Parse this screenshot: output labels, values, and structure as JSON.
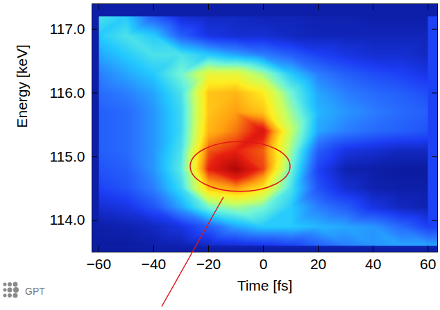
{
  "chart_data": {
    "type": "heatmap",
    "xlabel": "Time [fs]",
    "ylabel": "Energy [keV]",
    "xlim": [
      -62.5,
      63.5
    ],
    "ylim": [
      113.5,
      117.4
    ],
    "xticks": [
      -60,
      -40,
      -20,
      0,
      20,
      40,
      60
    ],
    "yticks": [
      114,
      115,
      116,
      117
    ],
    "x": [
      -60,
      -50,
      -40,
      -30,
      -20,
      -10,
      0,
      10,
      20,
      30,
      40,
      50,
      60
    ],
    "y": [
      113.6,
      113.9,
      114.2,
      114.5,
      114.8,
      115.1,
      115.4,
      115.7,
      116.0,
      116.3,
      116.6,
      116.9,
      117.2
    ],
    "cells": [
      [
        0.04,
        0.04,
        0.05,
        0.06,
        0.08,
        0.1,
        0.12,
        0.15,
        0.2,
        0.25,
        0.28,
        0.3,
        0.3
      ],
      [
        0.05,
        0.06,
        0.08,
        0.12,
        0.2,
        0.3,
        0.35,
        0.35,
        0.32,
        0.3,
        0.28,
        0.22,
        0.15
      ],
      [
        0.1,
        0.12,
        0.18,
        0.3,
        0.45,
        0.5,
        0.45,
        0.35,
        0.25,
        0.2,
        0.12,
        0.08,
        0.06
      ],
      [
        0.15,
        0.18,
        0.25,
        0.38,
        0.7,
        0.75,
        0.65,
        0.4,
        0.18,
        0.1,
        0.06,
        0.05,
        0.05
      ],
      [
        0.18,
        0.2,
        0.28,
        0.42,
        0.85,
        0.95,
        0.82,
        0.45,
        0.15,
        0.06,
        0.05,
        0.04,
        0.04
      ],
      [
        0.2,
        0.22,
        0.28,
        0.4,
        0.8,
        0.85,
        0.8,
        0.5,
        0.2,
        0.12,
        0.1,
        0.08,
        0.08
      ],
      [
        0.2,
        0.22,
        0.28,
        0.38,
        0.72,
        0.78,
        0.88,
        0.55,
        0.3,
        0.25,
        0.22,
        0.2,
        0.18
      ],
      [
        0.2,
        0.22,
        0.28,
        0.38,
        0.7,
        0.75,
        0.7,
        0.5,
        0.32,
        0.28,
        0.25,
        0.22,
        0.2
      ],
      [
        0.22,
        0.25,
        0.3,
        0.4,
        0.7,
        0.72,
        0.65,
        0.45,
        0.3,
        0.25,
        0.22,
        0.2,
        0.17
      ],
      [
        0.25,
        0.3,
        0.35,
        0.45,
        0.6,
        0.6,
        0.5,
        0.35,
        0.25,
        0.2,
        0.17,
        0.15,
        0.12
      ],
      [
        0.3,
        0.35,
        0.4,
        0.4,
        0.35,
        0.3,
        0.25,
        0.2,
        0.15,
        0.12,
        0.1,
        0.1,
        0.08
      ],
      [
        0.35,
        0.4,
        0.35,
        0.2,
        0.12,
        0.1,
        0.1,
        0.08,
        0.07,
        0.07,
        0.07,
        0.07,
        0.07
      ],
      [
        0.4,
        0.35,
        0.2,
        0.1,
        0.08,
        0.08,
        0.07,
        0.07,
        0.06,
        0.06,
        0.05,
        0.05,
        0.05
      ]
    ],
    "annotations": [
      {
        "text": "GPT"
      }
    ]
  }
}
